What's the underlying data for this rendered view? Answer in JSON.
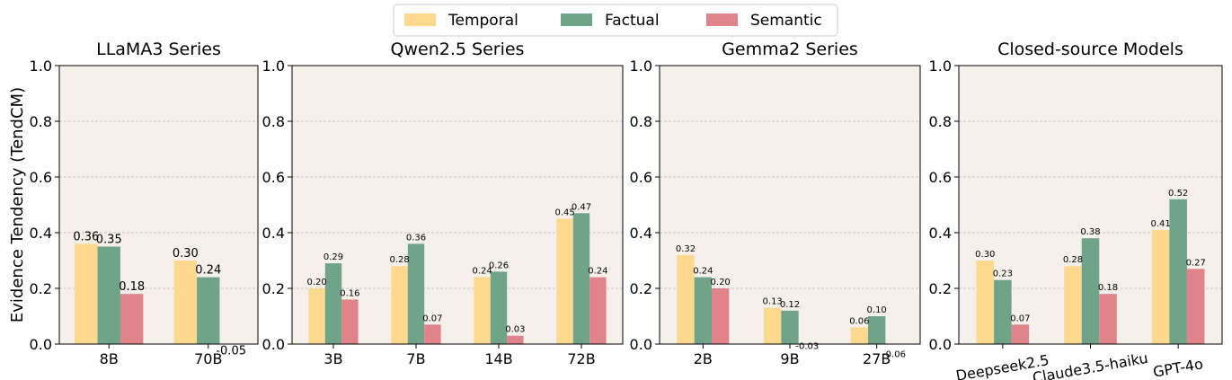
{
  "chart_data": [
    {
      "type": "bar",
      "title": "LLaMA3 Series",
      "ylabel": "Evidence Tendency (TendCM)",
      "legend": "upper center",
      "categories": [
        "8B",
        "70B"
      ],
      "series": [
        {
          "name": "Temporal",
          "color": "#fdd98f",
          "values": [
            0.36,
            0.3
          ],
          "value_labels": [
            "0.36",
            "0.30"
          ]
        },
        {
          "name": "Factual",
          "color": "#6fa488",
          "values": [
            0.35,
            0.24
          ],
          "value_labels": [
            "0.35",
            "0.24"
          ]
        },
        {
          "name": "Semantic",
          "color": "#e0838a",
          "values": [
            0.18,
            -0.05
          ],
          "value_labels": [
            "0.18",
            "-0.05"
          ]
        }
      ],
      "ylim": [
        0,
        1
      ],
      "yticks": [
        {
          "value": 0,
          "label": "0.0"
        },
        0.2,
        0.4,
        0.6,
        0.8,
        {
          "value": 1,
          "label": "1.0"
        }
      ],
      "grid": true
    },
    {
      "type": "bar",
      "title": "Qwen2.5 Series",
      "categories": [
        "3B",
        "7B",
        "14B",
        "72B"
      ],
      "series": [
        {
          "name": "Temporal",
          "color": "#fdd98f",
          "values": [
            0.2,
            0.28,
            0.24,
            0.45
          ],
          "value_labels": [
            "0.20",
            "0.28",
            "0.24",
            "0.45"
          ]
        },
        {
          "name": "Factual",
          "color": "#6fa488",
          "values": [
            0.29,
            0.36,
            0.26,
            0.47
          ],
          "value_labels": [
            "0.29",
            "0.36",
            "0.26",
            "0.47"
          ]
        },
        {
          "name": "Semantic",
          "color": "#e0838a",
          "values": [
            0.16,
            0.07,
            0.03,
            0.24
          ],
          "value_labels": [
            "0.16",
            "0.07",
            "0.03",
            "0.24"
          ]
        }
      ],
      "ylim": [
        0,
        1
      ],
      "yticks": [
        {
          "value": 0,
          "label": "0.0"
        },
        0.2,
        0.4,
        0.6,
        0.8,
        {
          "value": 1,
          "label": "1.0"
        }
      ],
      "grid": true
    },
    {
      "type": "bar",
      "title": "Gemma2 Series",
      "categories": [
        "2B",
        "9B",
        "27B"
      ],
      "series": [
        {
          "name": "Temporal",
          "color": "#fdd98f",
          "values": [
            0.32,
            0.13,
            0.06
          ],
          "value_labels": [
            "0.32",
            "0.13",
            "0.06"
          ]
        },
        {
          "name": "Factual",
          "color": "#6fa488",
          "values": [
            0.24,
            0.12,
            0.1
          ],
          "value_labels": [
            "0.24",
            "0.12",
            "0.10"
          ]
        },
        {
          "name": "Semantic",
          "color": "#e0838a",
          "values": [
            0.2,
            -0.03,
            -0.06
          ],
          "value_labels": [
            "0.20",
            "-0.03",
            "-0.06"
          ]
        }
      ],
      "ylim": [
        0,
        1
      ],
      "yticks": [
        {
          "value": 0,
          "label": "0.0"
        },
        0.2,
        0.4,
        0.6,
        0.8,
        {
          "value": 1,
          "label": "1.0"
        }
      ],
      "grid": true
    },
    {
      "type": "bar",
      "title": "Closed-source Models",
      "categories": [
        "Deepseek2.5",
        "Claude3.5-haiku",
        "GPT-4o"
      ],
      "series": [
        {
          "name": "Temporal",
          "color": "#fdd98f",
          "values": [
            0.3,
            0.28,
            0.41
          ],
          "value_labels": [
            "0.30",
            "0.28",
            "0.41"
          ]
        },
        {
          "name": "Factual",
          "color": "#6fa488",
          "values": [
            0.23,
            0.38,
            0.52
          ],
          "value_labels": [
            "0.23",
            "0.38",
            "0.52"
          ]
        },
        {
          "name": "Semantic",
          "color": "#e0838a",
          "values": [
            0.07,
            0.18,
            0.27
          ],
          "value_labels": [
            "0.07",
            "0.18",
            "0.27"
          ]
        }
      ],
      "ylim": [
        0,
        1
      ],
      "yticks": [
        {
          "value": 0,
          "label": "0.0"
        },
        0.2,
        0.4,
        0.6,
        0.8,
        {
          "value": 1,
          "label": "1.0"
        }
      ],
      "grid": true
    }
  ]
}
